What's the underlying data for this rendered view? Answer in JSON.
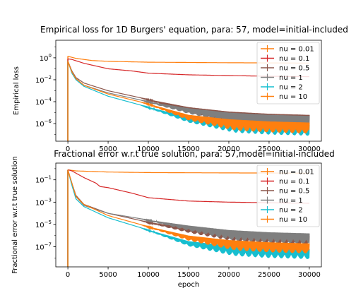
{
  "chart_data": [
    {
      "type": "line",
      "title": "Empirical loss for 1D Burgers' equation, para: 57, model=initial-included",
      "xlabel": "",
      "ylabel": "Empirical loss",
      "xlim": [
        -1500,
        31500
      ],
      "ylim_log10": [
        -7.6,
        1.6
      ],
      "yscale": "log",
      "xticks": [
        0,
        5000,
        10000,
        15000,
        20000,
        25000,
        30000
      ],
      "yticks_exp": [
        0,
        -2,
        -4,
        -6
      ],
      "legend_position": "upper right",
      "series": [
        {
          "name": "nu = 0.01",
          "color": "#ff7f0e",
          "log10": [
            [
              0,
              0.15
            ],
            [
              200,
              0.1
            ],
            [
              1000,
              -0.05
            ],
            [
              2000,
              -0.15
            ],
            [
              3000,
              -0.25
            ],
            [
              5000,
              -0.32
            ],
            [
              10000,
              -0.4
            ],
            [
              20000,
              -0.45
            ],
            [
              30000,
              -0.48
            ]
          ]
        },
        {
          "name": "nu = 0.1",
          "color": "#d62728",
          "log10": [
            [
              0,
              -0.1
            ],
            [
              500,
              -0.15
            ],
            [
              2000,
              -0.5
            ],
            [
              5000,
              -1.0
            ],
            [
              8000,
              -1.2
            ],
            [
              10000,
              -1.4
            ],
            [
              15000,
              -1.55
            ],
            [
              20000,
              -1.62
            ],
            [
              25000,
              -1.68
            ],
            [
              30000,
              -1.72
            ]
          ]
        },
        {
          "name": "nu = 0.5",
          "color": "#8c564b",
          "log10": [
            [
              0,
              -0.3
            ],
            [
              500,
              -1.2
            ],
            [
              1000,
              -1.8
            ],
            [
              2000,
              -2.3
            ],
            [
              5000,
              -3.0
            ],
            [
              10000,
              -3.8
            ],
            [
              15000,
              -4.5
            ],
            [
              20000,
              -4.9
            ],
            [
              25000,
              -5.1
            ],
            [
              30000,
              -5.2
            ]
          ]
        },
        {
          "name": "nu = 1",
          "color": "#7f7f7f",
          "log10": [
            [
              0,
              -0.3
            ],
            [
              500,
              -1.3
            ],
            [
              1000,
              -1.9
            ],
            [
              2000,
              -2.5
            ],
            [
              5000,
              -3.2
            ],
            [
              10000,
              -4.0
            ],
            [
              15000,
              -4.6
            ],
            [
              20000,
              -5.0
            ],
            [
              25000,
              -5.2
            ],
            [
              30000,
              -5.3
            ]
          ]
        },
        {
          "name": "nu = 2",
          "color": "#17becf",
          "log10": [
            [
              0,
              -0.3
            ],
            [
              500,
              -1.4
            ],
            [
              1000,
              -2.0
            ],
            [
              2000,
              -2.6
            ],
            [
              5000,
              -3.5
            ],
            [
              10000,
              -4.5
            ],
            [
              15000,
              -5.4
            ],
            [
              20000,
              -5.8
            ],
            [
              25000,
              -6.0
            ],
            [
              30000,
              -6.1
            ]
          ]
        },
        {
          "name": "nu = 10",
          "color": "#ff7f0e",
          "log10": [
            [
              0,
              -0.3
            ],
            [
              500,
              -1.3
            ],
            [
              1000,
              -1.9
            ],
            [
              2000,
              -2.5
            ],
            [
              5000,
              -3.3
            ],
            [
              10000,
              -4.2
            ],
            [
              15000,
              -5.2
            ],
            [
              20000,
              -5.6
            ],
            [
              25000,
              -5.8
            ],
            [
              30000,
              -5.9
            ]
          ]
        }
      ]
    },
    {
      "type": "line",
      "title": "Fractional error w.r.t true solution, para: 57,model=initial-included",
      "xlabel": "epoch",
      "ylabel": "Fractional error w.r.t true solution",
      "xlim": [
        -1500,
        31500
      ],
      "ylim_log10": [
        -8.8,
        0.5
      ],
      "yscale": "log",
      "xticks": [
        0,
        5000,
        10000,
        15000,
        20000,
        25000,
        30000
      ],
      "yticks_exp": [
        -1,
        -3,
        -5,
        -7
      ],
      "legend_position": "upper right",
      "series": [
        {
          "name": "nu = 0.01",
          "color": "#ff7f0e",
          "log10": [
            [
              0,
              -0.1
            ],
            [
              1000,
              -0.2
            ],
            [
              5000,
              -0.3
            ],
            [
              10000,
              -0.35
            ],
            [
              20000,
              -0.38
            ],
            [
              30000,
              -0.4
            ]
          ]
        },
        {
          "name": "nu = 0.1",
          "color": "#d62728",
          "log10": [
            [
              0,
              -0.1
            ],
            [
              500,
              -0.2
            ],
            [
              1000,
              -0.4
            ],
            [
              2000,
              -0.8
            ],
            [
              3500,
              -1.3
            ],
            [
              4000,
              -1.6
            ],
            [
              5000,
              -1.7
            ],
            [
              8000,
              -2.2
            ],
            [
              10000,
              -2.6
            ],
            [
              15000,
              -2.9
            ],
            [
              20000,
              -3.0
            ],
            [
              25000,
              -3.05
            ],
            [
              30000,
              -3.1
            ]
          ]
        },
        {
          "name": "nu = 0.5",
          "color": "#8c564b",
          "log10": [
            [
              0,
              -0.1
            ],
            [
              500,
              -1.3
            ],
            [
              1000,
              -2.4
            ],
            [
              2000,
              -3.2
            ],
            [
              5000,
              -4.0
            ],
            [
              10000,
              -4.8
            ],
            [
              15000,
              -5.3
            ],
            [
              20000,
              -5.6
            ],
            [
              25000,
              -5.8
            ],
            [
              30000,
              -6.0
            ]
          ]
        },
        {
          "name": "nu = 1",
          "color": "#7f7f7f",
          "log10": [
            [
              0,
              -0.1
            ],
            [
              500,
              -1.4
            ],
            [
              1000,
              -2.5
            ],
            [
              2000,
              -3.3
            ],
            [
              5000,
              -4.0
            ],
            [
              10000,
              -4.6
            ],
            [
              15000,
              -5.1
            ],
            [
              20000,
              -5.5
            ],
            [
              25000,
              -5.7
            ],
            [
              30000,
              -5.8
            ]
          ]
        },
        {
          "name": "nu = 2",
          "color": "#17becf",
          "log10": [
            [
              0,
              -0.1
            ],
            [
              500,
              -1.5
            ],
            [
              1000,
              -2.7
            ],
            [
              2000,
              -3.4
            ],
            [
              5000,
              -4.4
            ],
            [
              10000,
              -5.5
            ],
            [
              15000,
              -6.5
            ],
            [
              20000,
              -6.9
            ],
            [
              25000,
              -7.1
            ],
            [
              30000,
              -7.2
            ]
          ]
        },
        {
          "name": "nu = 10",
          "color": "#ff7f0e",
          "log10": [
            [
              0,
              -0.1
            ],
            [
              500,
              -1.3
            ],
            [
              1000,
              -2.5
            ],
            [
              2000,
              -3.2
            ],
            [
              5000,
              -4.2
            ],
            [
              10000,
              -5.2
            ],
            [
              15000,
              -6.0
            ],
            [
              20000,
              -6.4
            ],
            [
              25000,
              -6.6
            ],
            [
              30000,
              -6.7
            ]
          ]
        }
      ]
    }
  ]
}
